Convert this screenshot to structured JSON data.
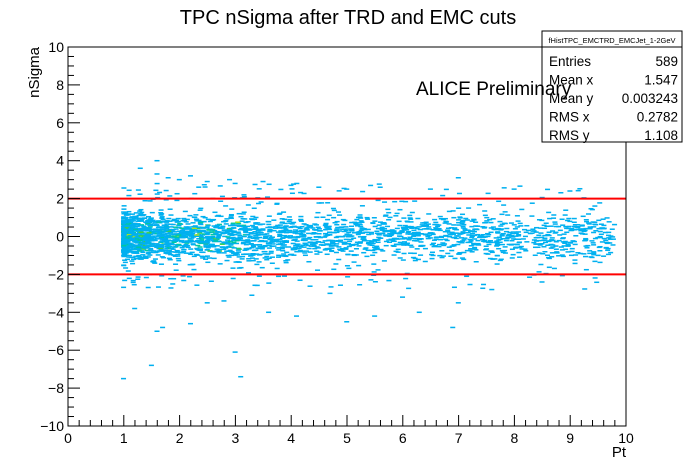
{
  "chart_data": {
    "type": "heatmap",
    "title": "TPC nSigma after TRD and EMC cuts",
    "xlabel": "Pt",
    "ylabel": "nSigma",
    "xlim": [
      0,
      10
    ],
    "ylim": [
      -10,
      10
    ],
    "x_ticks": [
      "0",
      "1",
      "2",
      "3",
      "4",
      "5",
      "6",
      "7",
      "8",
      "9",
      "10"
    ],
    "y_ticks": [
      "−10",
      "−8",
      "−6",
      "−4",
      "−2",
      "0",
      "2",
      "4",
      "6",
      "8",
      "10"
    ],
    "grid": false,
    "annotation": "ALICE Preliminary",
    "cut_lines": [
      {
        "y": 2,
        "x_range": [
          0,
          10
        ],
        "color": "#ff0000"
      },
      {
        "y": -2,
        "x_range": [
          0,
          10
        ],
        "color": "#ff0000"
      }
    ],
    "bin_width_x": 0.1,
    "bin_width_y": 0.08,
    "palette": [
      "#00b0f0",
      "#00c8a0",
      "#40d040",
      "#b0e020"
    ],
    "stats": {
      "name": "fHistTPC_EMCTRD_EMCJet_1-2GeV",
      "rows": [
        {
          "label": "Entries",
          "value": "589"
        },
        {
          "label": "Mean x",
          "value": "1.547"
        },
        {
          "label": "Mean y",
          "value": "0.003243"
        },
        {
          "label": "RMS x",
          "value": "0.2782"
        },
        {
          "label": "RMS y",
          "value": "1.108"
        }
      ]
    },
    "outliers": [
      [
        1.0,
        -7.5
      ],
      [
        1.5,
        -6.8
      ],
      [
        1.6,
        -5.0
      ],
      [
        1.7,
        -4.8
      ],
      [
        2.2,
        -4.6
      ],
      [
        3.0,
        -6.1
      ],
      [
        3.1,
        -7.4
      ],
      [
        3.6,
        -4.0
      ],
      [
        4.1,
        -4.2
      ],
      [
        5.0,
        -4.5
      ],
      [
        5.5,
        -4.2
      ],
      [
        6.3,
        -4.0
      ],
      [
        6.9,
        -4.8
      ],
      [
        7.0,
        -3.5
      ],
      [
        1.2,
        -3.8
      ],
      [
        2.5,
        -3.5
      ],
      [
        1.6,
        4.0
      ],
      [
        1.6,
        3.3
      ],
      [
        1.8,
        3.1
      ],
      [
        2.0,
        3.0
      ],
      [
        2.5,
        2.9
      ],
      [
        2.9,
        3.0
      ],
      [
        3.0,
        2.8
      ],
      [
        3.5,
        2.9
      ],
      [
        4.0,
        2.7
      ],
      [
        7.0,
        3.1
      ],
      [
        5.6,
        2.6
      ],
      [
        6.5,
        2.5
      ],
      [
        8.0,
        2.5
      ],
      [
        9.0,
        2.4
      ],
      [
        8.5,
        -2.4
      ],
      [
        5.0,
        2.5
      ],
      [
        4.5,
        2.6
      ],
      [
        1.3,
        3.6
      ],
      [
        2.2,
        3.2
      ],
      [
        3.3,
        -3.1
      ],
      [
        4.7,
        -3.0
      ],
      [
        6.0,
        -3.2
      ],
      [
        7.6,
        -2.8
      ],
      [
        2.8,
        -3.4
      ]
    ]
  }
}
